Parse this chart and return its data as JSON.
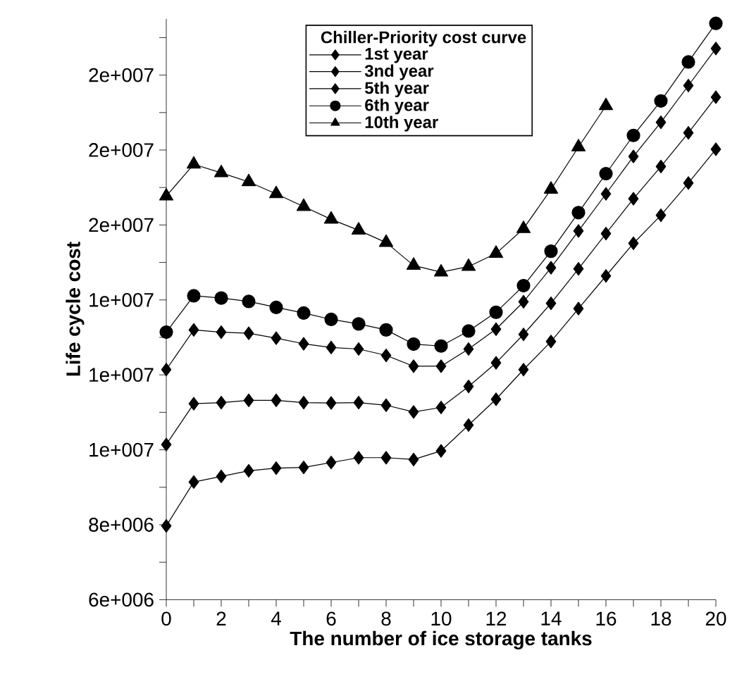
{
  "chart_data": {
    "type": "line",
    "xlabel": "The number of ice storage tanks",
    "ylabel": "Life cycle cost",
    "legend_title": "Chiller-Priority cost curve",
    "x": [
      0,
      1,
      2,
      3,
      4,
      5,
      6,
      7,
      8,
      9,
      10,
      11,
      12,
      13,
      14,
      15,
      16,
      17,
      18,
      19,
      20
    ],
    "series": [
      {
        "name": "1st year",
        "color": "#000000",
        "marker": "diamond",
        "values": [
          7970000,
          9140000,
          9290000,
          9440000,
          9510000,
          9530000,
          9660000,
          9790000,
          9790000,
          9740000,
          9970000,
          10660000,
          11350000,
          12140000,
          12890000,
          13770000,
          14640000,
          15510000,
          16260000,
          17120000,
          18020000
        ]
      },
      {
        "name": "3nd year",
        "color": "#000000",
        "marker": "diamond",
        "values": [
          10140000,
          11230000,
          11260000,
          11320000,
          11320000,
          11260000,
          11250000,
          11260000,
          11190000,
          11010000,
          11130000,
          11690000,
          12320000,
          13080000,
          13910000,
          14830000,
          15770000,
          16700000,
          17560000,
          18460000,
          19410000
        ]
      },
      {
        "name": "5th year",
        "color": "#000000",
        "marker": "diamond",
        "values": [
          12140000,
          13200000,
          13140000,
          13110000,
          12980000,
          12830000,
          12730000,
          12690000,
          12520000,
          12230000,
          12230000,
          12690000,
          13220000,
          13950000,
          14860000,
          15840000,
          16830000,
          17830000,
          18740000,
          19720000,
          20710000
        ]
      },
      {
        "name": "6th year",
        "color": "#000000",
        "marker": "circle",
        "values": [
          13140000,
          14110000,
          14050000,
          13960000,
          13800000,
          13650000,
          13480000,
          13360000,
          13200000,
          12820000,
          12770000,
          13170000,
          13670000,
          14380000,
          15300000,
          16330000,
          17370000,
          18390000,
          19310000,
          20350000,
          21380000
        ]
      },
      {
        "name": "10th year",
        "color": "#000000",
        "marker": "triangle",
        "values": [
          16770000,
          17620000,
          17390000,
          17150000,
          16830000,
          16490000,
          16150000,
          15860000,
          15530000,
          14920000,
          14740000,
          14890000,
          15240000,
          15900000,
          16950000,
          18080000,
          19180000,
          null,
          null,
          null,
          null
        ]
      }
    ],
    "xlim": [
      0,
      20
    ],
    "xticks": [
      0,
      {
        "value": 1,
        "label": null
      },
      2,
      {
        "value": 3,
        "label": null
      },
      4,
      {
        "value": 5,
        "label": null
      },
      6,
      {
        "value": 7,
        "label": null
      },
      8,
      {
        "value": 9,
        "label": null
      },
      10,
      {
        "value": 11,
        "label": null
      },
      12,
      {
        "value": 13,
        "label": null
      },
      14,
      {
        "value": 15,
        "label": null
      },
      16,
      {
        "value": 17,
        "label": null
      },
      18,
      {
        "value": 19,
        "label": null
      },
      20
    ],
    "ylim": [
      6000000,
      21500000
    ],
    "yticks": [
      {
        "value": 6000000,
        "label": "6e+006"
      },
      {
        "value": 7000000,
        "label": null
      },
      {
        "value": 8000000,
        "label": "8e+006"
      },
      {
        "value": 9000000,
        "label": null
      },
      {
        "value": 10000000,
        "label": "1e+007"
      },
      {
        "value": 11000000,
        "label": null
      },
      {
        "value": 12000000,
        "label": "1e+007"
      },
      {
        "value": 13000000,
        "label": null
      },
      {
        "value": 14000000,
        "label": "1e+007"
      },
      {
        "value": 15000000,
        "label": null
      },
      {
        "value": 16000000,
        "label": "2e+007"
      },
      {
        "value": 17000000,
        "label": null
      },
      {
        "value": 18000000,
        "label": "2e+007"
      },
      {
        "value": 19000000,
        "label": null
      },
      {
        "value": 20000000,
        "label": "2e+007"
      },
      {
        "value": 21000000,
        "label": null
      }
    ],
    "grid": false,
    "legend": "top",
    "line_style": "solid"
  }
}
